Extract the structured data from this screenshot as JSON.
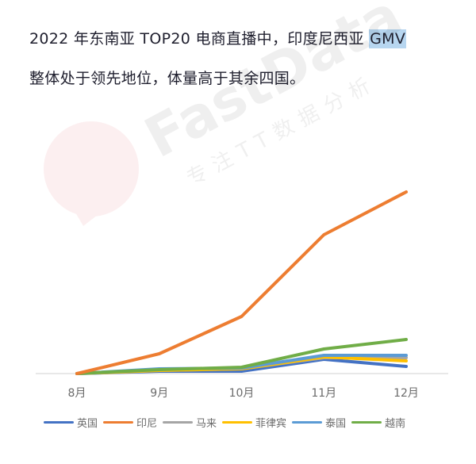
{
  "caption": {
    "line1_prefix": "2022 年东南亚 TOP20 电商直播中，印度尼西亚 ",
    "line1_highlight": "GMV",
    "line2": "整体处于领先地位，体量高于其余四国。"
  },
  "watermark": {
    "brand": "FastData",
    "tagline": "专注TT数据分析"
  },
  "chart_data": {
    "type": "line",
    "title": "",
    "xlabel": "",
    "ylabel": "",
    "categories": [
      "8月",
      "9月",
      "10月",
      "11月",
      "12月"
    ],
    "ylim": [
      0,
      240
    ],
    "grid": false,
    "legend_position": "bottom",
    "series": [
      {
        "name": "英国",
        "color": "#4472c4",
        "values": [
          0,
          3,
          3,
          18,
          9
        ]
      },
      {
        "name": "印尼",
        "color": "#ed7d31",
        "values": [
          0,
          25,
          72,
          175,
          229
        ]
      },
      {
        "name": "马来",
        "color": "#a5a5a5",
        "values": [
          0,
          4,
          6,
          20,
          20
        ]
      },
      {
        "name": "菲律宾",
        "color": "#ffc000",
        "values": [
          0,
          4,
          6,
          21,
          16
        ]
      },
      {
        "name": "泰国",
        "color": "#5b9bd5",
        "values": [
          0,
          6,
          7,
          23,
          23
        ]
      },
      {
        "name": "越南",
        "color": "#70ad47",
        "values": [
          0,
          5,
          8,
          31,
          43
        ]
      }
    ]
  }
}
